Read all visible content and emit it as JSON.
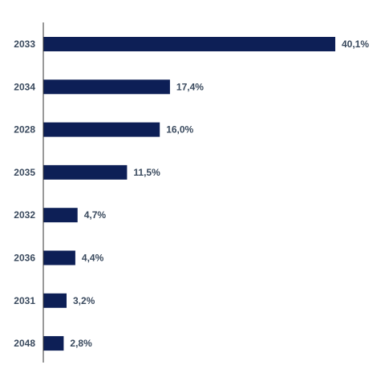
{
  "chart_data": {
    "type": "bar",
    "orientation": "horizontal",
    "categories": [
      "2033",
      "2034",
      "2028",
      "2035",
      "2032",
      "2036",
      "2031",
      "2048"
    ],
    "values": [
      40.1,
      17.4,
      16.0,
      11.5,
      4.7,
      4.4,
      3.2,
      2.8
    ],
    "value_labels": [
      "40,1%",
      "17,4%",
      "16,0%",
      "11,5%",
      "4,7%",
      "4,4%",
      "3,2%",
      "2,8%"
    ],
    "title": "",
    "xlabel": "",
    "ylabel": "",
    "xlim": [
      0,
      40.1
    ],
    "grid": false,
    "legend": "none",
    "bar_color": "#0d1f56",
    "axis_color": "#333333",
    "label_color": "#3a4a5e"
  }
}
